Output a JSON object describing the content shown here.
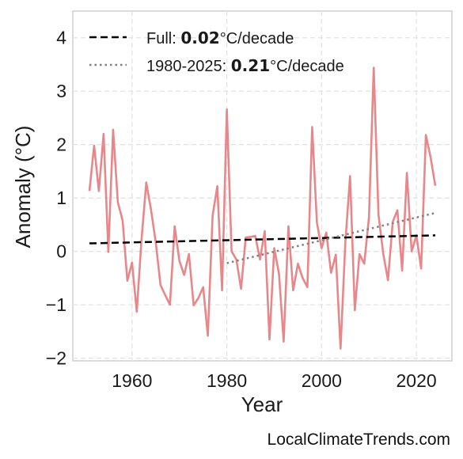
{
  "chart_data": {
    "type": "line",
    "xlabel": "Year",
    "ylabel": "Anomaly (°C)",
    "xlim": [
      1947.5,
      2027.5
    ],
    "ylim": [
      -2.05,
      4.5
    ],
    "xticks": [
      1960,
      1980,
      2000,
      2020
    ],
    "xtick_labels": [
      "1960",
      "1980",
      "2000",
      "2020"
    ],
    "yticks": [
      -2,
      -1,
      0,
      1,
      2,
      3,
      4
    ],
    "ytick_labels": [
      "−2",
      "−1",
      "0",
      "1",
      "2",
      "3",
      "4"
    ],
    "grid": true,
    "legend_position": "top-left",
    "series": [
      {
        "color": "#e8878a",
        "x": [
          1951,
          1952,
          1953,
          1954,
          1955,
          1956,
          1957,
          1958,
          1959,
          1960,
          1961,
          1962,
          1963,
          1964,
          1965,
          1966,
          1967,
          1968,
          1969,
          1970,
          1971,
          1972,
          1973,
          1974,
          1975,
          1976,
          1977,
          1978,
          1979,
          1980,
          1981,
          1982,
          1983,
          1984,
          1985,
          1986,
          1987,
          1988,
          1989,
          1990,
          1991,
          1992,
          1993,
          1994,
          1995,
          1996,
          1997,
          1998,
          1999,
          2000,
          2001,
          2002,
          2003,
          2004,
          2005,
          2006,
          2007,
          2008,
          2009,
          2010,
          2011,
          2012,
          2013,
          2014,
          2015,
          2016,
          2017,
          2018,
          2019,
          2020,
          2021,
          2022,
          2023,
          2024
        ],
        "y": [
          1.13,
          1.98,
          1.13,
          2.2,
          -0.01,
          2.28,
          0.92,
          0.58,
          -0.55,
          -0.21,
          -1.13,
          0.22,
          1.29,
          0.78,
          0.17,
          -0.63,
          -0.82,
          -1.0,
          0.47,
          -0.18,
          -0.44,
          -0.05,
          -1.01,
          -0.87,
          -0.67,
          -1.58,
          0.67,
          1.22,
          -0.73,
          2.66,
          0.0,
          -0.15,
          -0.7,
          0.26,
          0.27,
          0.29,
          -0.15,
          0.38,
          -1.65,
          0.06,
          -0.42,
          -1.69,
          0.47,
          -0.73,
          -0.23,
          -0.5,
          -0.67,
          2.33,
          0.54,
          0.06,
          0.35,
          -0.4,
          -0.06,
          -1.82,
          0.16,
          1.41,
          -1.1,
          -0.05,
          -0.23,
          0.64,
          3.44,
          0.69,
          -0.04,
          -0.54,
          0.55,
          0.77,
          -0.36,
          1.47,
          0.0,
          0.3,
          -0.32,
          2.18,
          1.76,
          1.23
        ]
      }
    ],
    "trends": [
      {
        "label": "Full: ",
        "value": "0.02",
        "unit": "°C/decade",
        "style": "dashed",
        "color": "#000000",
        "x": [
          1951,
          2024
        ],
        "y": [
          0.15,
          0.3
        ]
      },
      {
        "label": "1980-2025: ",
        "value": "0.21",
        "unit": "°C/decade",
        "style": "dotted",
        "color": "#808080",
        "x": [
          1980,
          2024
        ],
        "y": [
          -0.22,
          0.72
        ]
      }
    ]
  },
  "watermark": "LocalClimateTrends.com"
}
